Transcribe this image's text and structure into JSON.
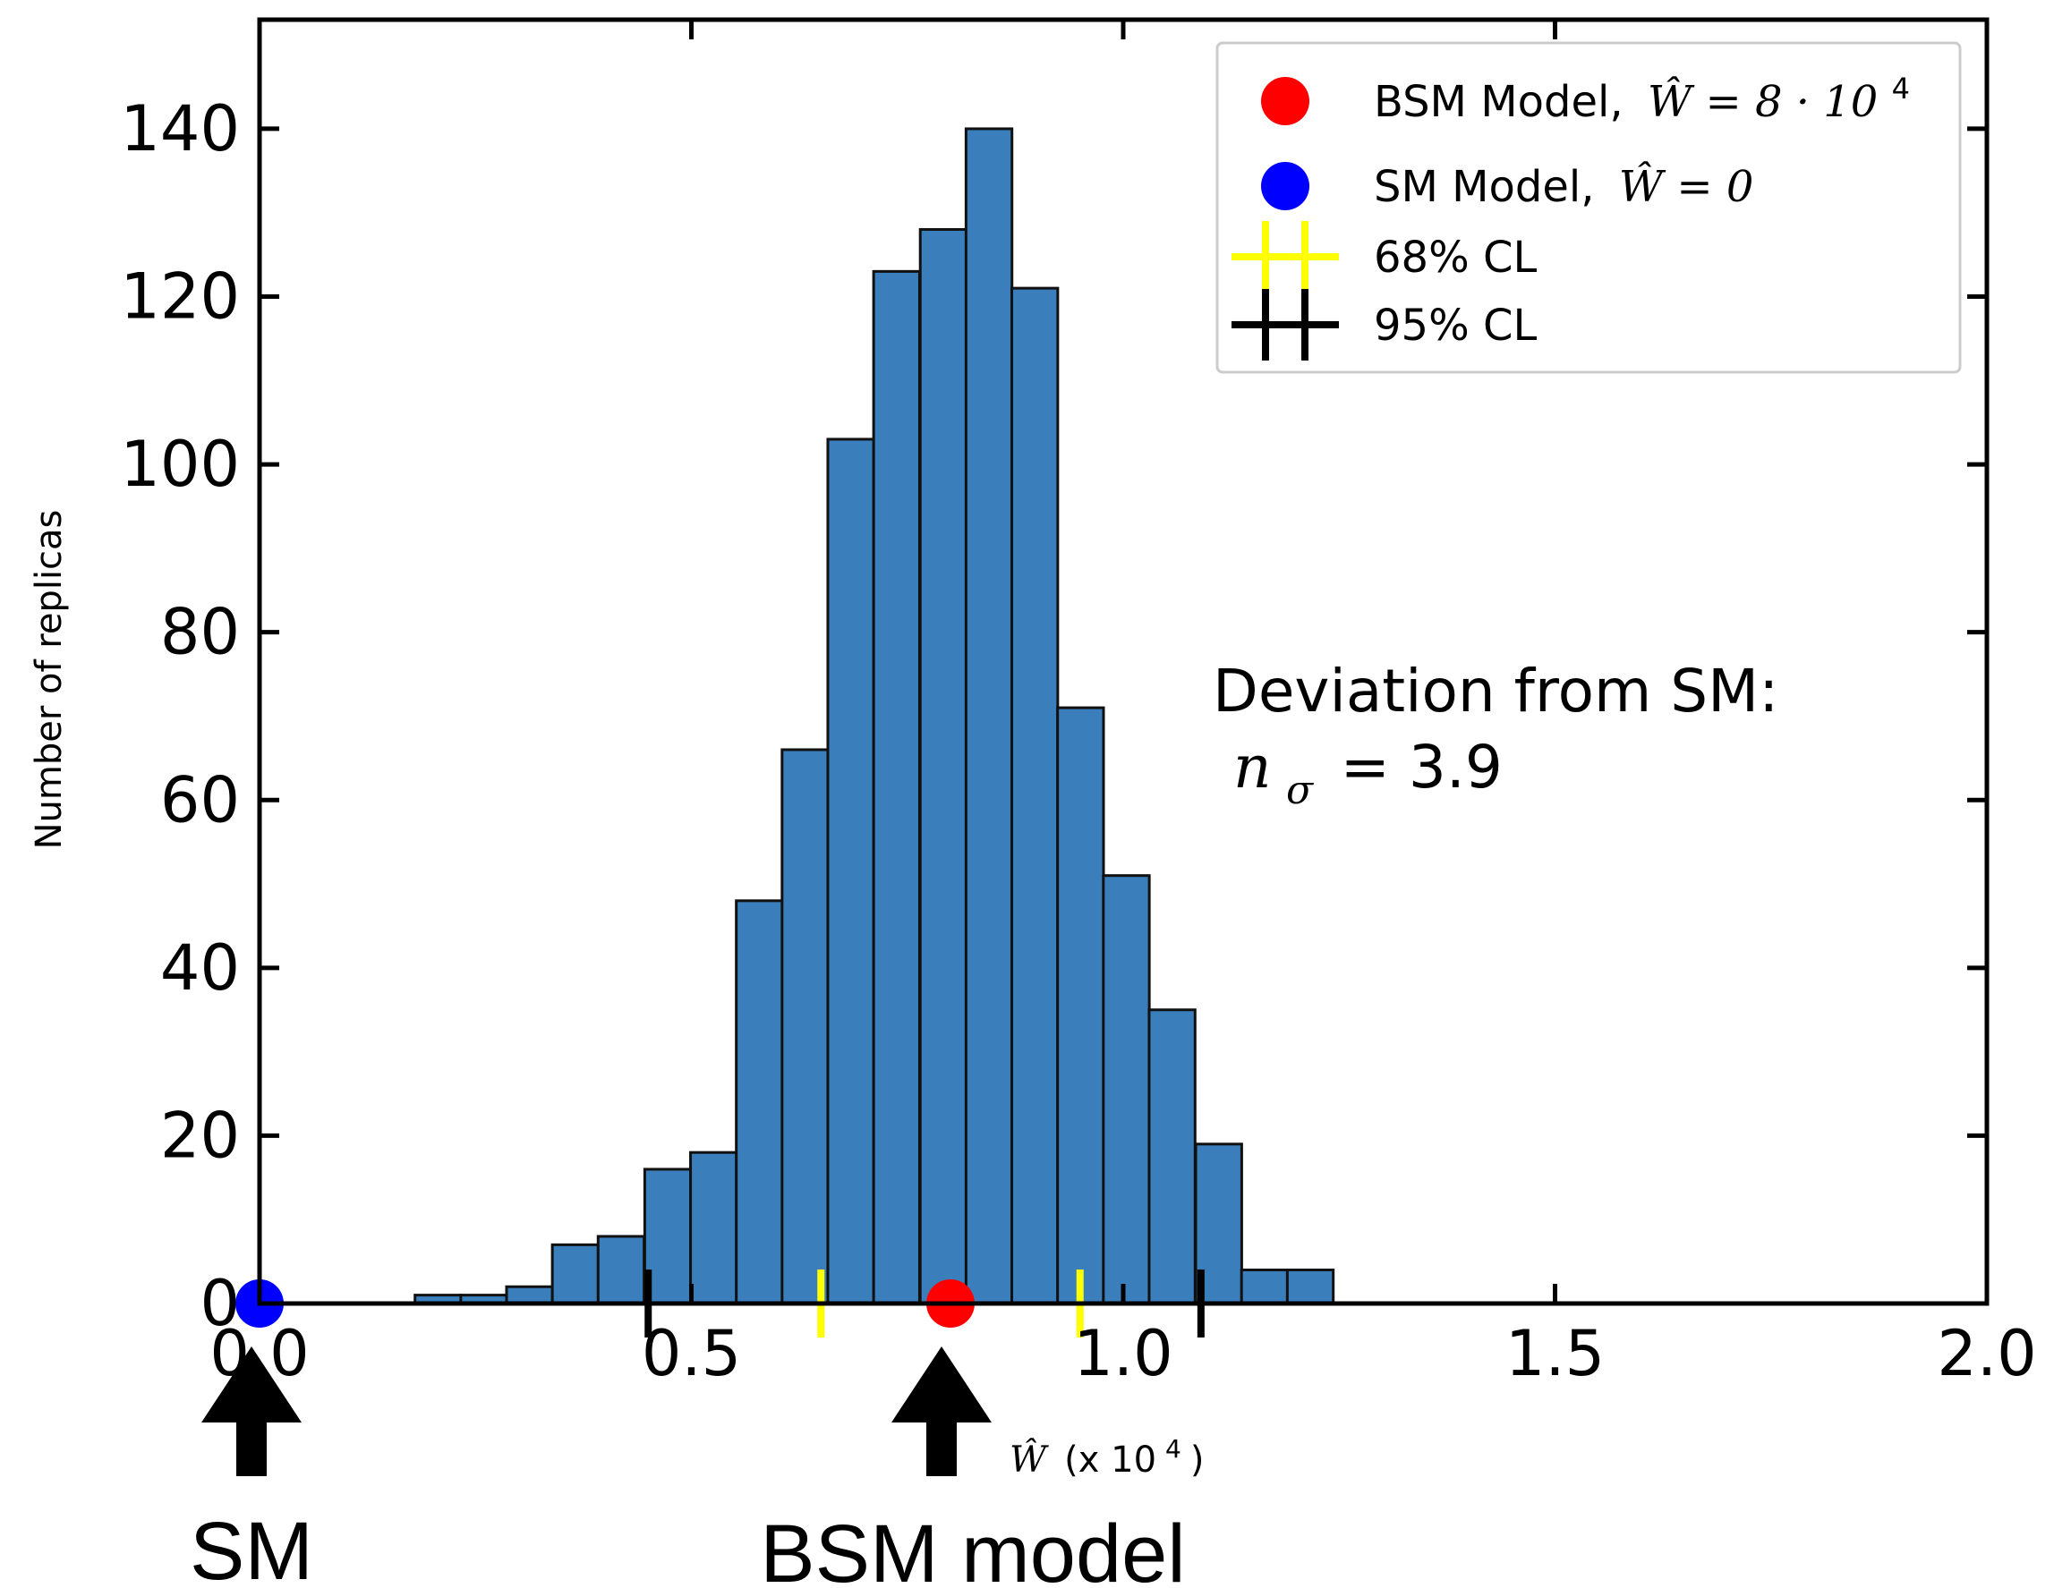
{
  "chart_data": {
    "type": "bar",
    "subtype": "histogram",
    "xlim": [
      0.0,
      2.0
    ],
    "ylim": [
      0,
      153
    ],
    "ylabel": "Number of replicas",
    "x_ticks": [
      "0.0",
      "0.5",
      "1.0",
      "1.5",
      "2.0"
    ],
    "y_ticks": [
      "0",
      "20",
      "40",
      "60",
      "80",
      "100",
      "120",
      "140"
    ],
    "bin_width": 0.0532,
    "bins": [
      {
        "x0": 0.18,
        "count": 1
      },
      {
        "x0": 0.233,
        "count": 1
      },
      {
        "x0": 0.286,
        "count": 2
      },
      {
        "x0": 0.339,
        "count": 7
      },
      {
        "x0": 0.392,
        "count": 8
      },
      {
        "x0": 0.446,
        "count": 16
      },
      {
        "x0": 0.499,
        "count": 18
      },
      {
        "x0": 0.552,
        "count": 48
      },
      {
        "x0": 0.605,
        "count": 66
      },
      {
        "x0": 0.658,
        "count": 103
      },
      {
        "x0": 0.711,
        "count": 123
      },
      {
        "x0": 0.765,
        "count": 128
      },
      {
        "x0": 0.818,
        "count": 140
      },
      {
        "x0": 0.871,
        "count": 121
      },
      {
        "x0": 0.924,
        "count": 71
      },
      {
        "x0": 0.977,
        "count": 51
      },
      {
        "x0": 1.03,
        "count": 35
      },
      {
        "x0": 1.084,
        "count": 19
      },
      {
        "x0": 1.137,
        "count": 4
      },
      {
        "x0": 1.19,
        "count": 4
      }
    ],
    "bar_color": "#3a7ebb",
    "points": [
      {
        "name": "BSM Model",
        "x": 0.8,
        "y": 0,
        "color": "#ff0000"
      },
      {
        "name": "SM Model",
        "x": 0.0,
        "y": 0,
        "color": "#0000ff"
      }
    ],
    "cl68": [
      0.65,
      0.95
    ],
    "cl95": [
      0.45,
      1.09
    ],
    "cl68_color": "#ffff00",
    "cl95_color": "#000000",
    "legend": {
      "placement": "top-right",
      "entries": [
        {
          "label": "BSM Model,",
          "math": "Ŵ = 8 · 10",
          "sup": "4",
          "marker": "red-dot"
        },
        {
          "label": "SM Model,",
          "math": "Ŵ = 0",
          "sup": "",
          "marker": "blue-dot"
        },
        {
          "label": "68% CL",
          "math": "",
          "sup": "",
          "marker": "yellow-errorbar"
        },
        {
          "label": "95% CL",
          "math": "",
          "sup": "",
          "marker": "black-errorbar"
        }
      ]
    },
    "annotation": {
      "line1": "Deviation from SM:",
      "n_symbol": "n",
      "sigma_symbol": "σ",
      "value_text": "= 3.9"
    },
    "arrow_labels": {
      "sm": "SM",
      "bsm": "BSM model",
      "w_hat": "Ŵ",
      "w_unit": "(x 10",
      "w_sup": "4",
      "w_close": ")"
    }
  }
}
